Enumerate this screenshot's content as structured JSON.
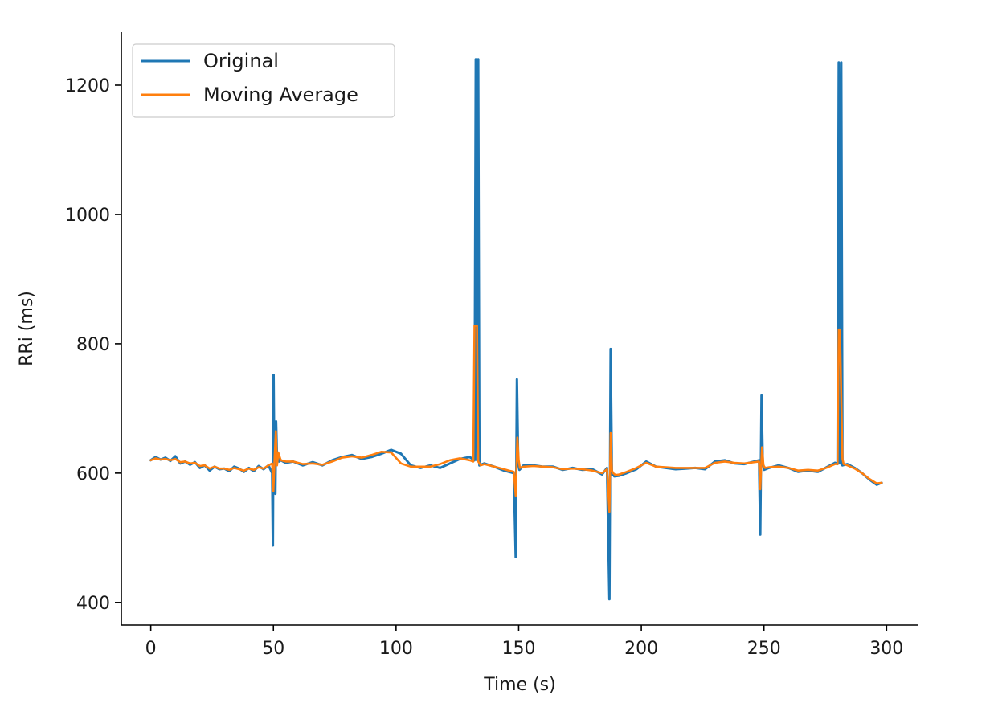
{
  "chart_data": {
    "type": "line",
    "title": "",
    "xlabel": "Time (s)",
    "ylabel": "RRi (ms)",
    "xlim": [
      -12,
      313
    ],
    "ylim": [
      365,
      1282
    ],
    "xticks": [
      0,
      50,
      100,
      150,
      200,
      250,
      300
    ],
    "yticks": [
      400,
      600,
      800,
      1000,
      1200
    ],
    "grid": false,
    "legend_position": "top-left",
    "colors": {
      "Original": "#1f77b4",
      "Moving Average": "#ff7f0e"
    },
    "series": [
      {
        "name": "Original",
        "x": [
          0,
          2,
          4,
          6,
          8,
          10,
          12,
          14,
          16,
          18,
          20,
          22,
          24,
          26,
          28,
          30,
          32,
          34,
          36,
          38,
          40,
          42,
          44,
          46,
          48,
          49.5,
          49.8,
          50.1,
          50.4,
          50.8,
          51.1,
          51.5,
          51.9,
          52.3,
          53,
          55,
          58,
          62,
          66,
          70,
          74,
          78,
          82,
          86,
          90,
          94,
          98,
          102,
          106,
          110,
          114,
          118,
          122,
          126,
          130,
          132,
          132.5,
          133,
          133.5,
          134,
          136,
          140,
          144,
          146,
          148,
          148.8,
          149.3,
          149.8,
          150.3,
          152,
          156,
          160,
          164,
          168,
          172,
          176,
          180,
          184,
          186,
          187,
          187.5,
          188,
          188.5,
          189,
          191,
          194,
          198,
          202,
          206,
          210,
          214,
          218,
          222,
          226,
          230,
          234,
          238,
          242,
          246,
          248,
          248.5,
          249,
          249.5,
          250,
          252,
          256,
          260,
          264,
          268,
          272,
          276,
          279,
          280,
          280.5,
          281,
          281.5,
          282,
          284,
          287,
          290,
          293,
          296,
          298
        ],
        "y": [
          620,
          625,
          621,
          624,
          619,
          626,
          615,
          618,
          613,
          617,
          608,
          612,
          604,
          610,
          606,
          607,
          603,
          610,
          607,
          602,
          608,
          603,
          611,
          606,
          612,
          600,
          488,
          752,
          582,
          568,
          680,
          620,
          625,
          618,
          620,
          616,
          618,
          612,
          617,
          612,
          620,
          625,
          628,
          622,
          625,
          630,
          636,
          630,
          612,
          608,
          612,
          608,
          615,
          622,
          625,
          620,
          1240,
          620,
          1240,
          612,
          615,
          610,
          604,
          602,
          600,
          470,
          745,
          615,
          605,
          612,
          612,
          610,
          610,
          605,
          608,
          605,
          606,
          598,
          608,
          405,
          792,
          598,
          598,
          595,
          596,
          600,
          606,
          618,
          610,
          608,
          606,
          607,
          608,
          606,
          618,
          620,
          615,
          614,
          618,
          620,
          505,
          720,
          618,
          605,
          608,
          612,
          608,
          602,
          604,
          602,
          610,
          616,
          614,
          1235,
          615,
          1235,
          612,
          614,
          608,
          600,
          590,
          582,
          585
        ]
      },
      {
        "name": "Moving Average",
        "x": [
          0,
          2,
          4,
          6,
          8,
          10,
          12,
          14,
          16,
          18,
          20,
          22,
          24,
          26,
          28,
          30,
          32,
          34,
          36,
          38,
          40,
          42,
          44,
          46,
          48,
          49.5,
          50,
          50.5,
          51,
          51.5,
          52,
          53,
          55,
          58,
          62,
          66,
          70,
          74,
          78,
          82,
          86,
          90,
          94,
          98,
          102,
          106,
          110,
          114,
          118,
          122,
          126,
          130,
          131.5,
          132,
          132.5,
          133,
          133.5,
          134.5,
          136,
          140,
          144,
          146,
          148,
          148.8,
          149.5,
          150,
          150.5,
          152,
          156,
          160,
          164,
          168,
          172,
          176,
          180,
          184,
          186,
          187,
          187.5,
          188,
          188.5,
          189.5,
          191,
          194,
          198,
          202,
          206,
          210,
          214,
          218,
          222,
          226,
          230,
          234,
          238,
          242,
          246,
          248,
          248.5,
          249.2,
          249.8,
          250.5,
          252,
          256,
          260,
          264,
          268,
          272,
          276,
          279,
          280,
          280.5,
          281,
          282,
          282.5,
          284,
          287,
          290,
          293,
          296,
          298
        ],
        "y": [
          620,
          623,
          621,
          622,
          620,
          622,
          617,
          618,
          615,
          616,
          611,
          612,
          607,
          610,
          607,
          607,
          605,
          608,
          606,
          604,
          607,
          605,
          609,
          607,
          612,
          615,
          572,
          625,
          665,
          612,
          632,
          620,
          618,
          618,
          614,
          615,
          613,
          618,
          624,
          626,
          624,
          628,
          633,
          632,
          615,
          610,
          610,
          610,
          614,
          620,
          623,
          620,
          618,
          828,
          828,
          828,
          618,
          612,
          614,
          610,
          606,
          604,
          602,
          565,
          655,
          620,
          608,
          610,
          611,
          610,
          609,
          606,
          607,
          606,
          604,
          600,
          606,
          540,
          662,
          604,
          600,
          597,
          598,
          602,
          608,
          616,
          610,
          609,
          608,
          608,
          608,
          608,
          616,
          618,
          616,
          615,
          617,
          618,
          575,
          640,
          612,
          608,
          609,
          610,
          608,
          604,
          605,
          604,
          609,
          614,
          614,
          822,
          822,
          622,
          614,
          612,
          607,
          600,
          591,
          584,
          585
        ]
      }
    ]
  }
}
